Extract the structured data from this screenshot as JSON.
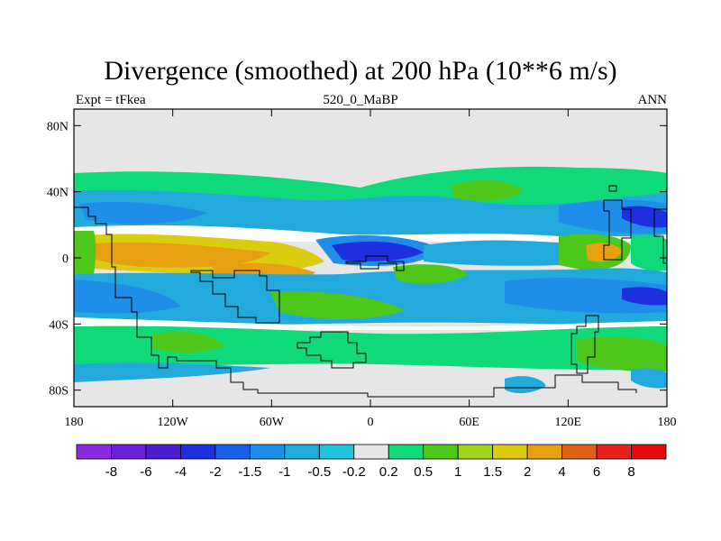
{
  "title": "Divergence (smoothed) at 200 hPa (10**6 m/s)",
  "left_label": "Expt = tFkea",
  "center_label": "520_0_MaBP",
  "right_label": "ANN",
  "map_data": {
    "type": "filled-contour-map",
    "projection": "cylindrical-equidistant",
    "lon_range": [
      -180,
      180
    ],
    "lat_range": [
      -90,
      90
    ],
    "background_color": "#e6e6e6",
    "x_ticks": [
      "180",
      "120W",
      "60W",
      "0",
      "60E",
      "120E",
      "180"
    ],
    "y_ticks": [
      "80N",
      "40N",
      "0",
      "40S",
      "80S"
    ]
  },
  "colorbar": {
    "labels": [
      "-8",
      "-6",
      "-4",
      "-2",
      "-1.5",
      "-1",
      "-0.5",
      "-0.2",
      "0.2",
      "0.5",
      "1",
      "1.5",
      "2",
      "4",
      "6",
      "8"
    ],
    "colors": [
      "#8a2be2",
      "#6a1fd8",
      "#4a1fd2",
      "#1f2fe0",
      "#1a5fe8",
      "#1f8ee8",
      "#22aadd",
      "#1ec3de",
      "#e6e6e6",
      "#10d97a",
      "#4dc81a",
      "#9ed41a",
      "#dccc10",
      "#e6a010",
      "#e0601a",
      "#e8201a",
      "#e20a0a"
    ]
  }
}
